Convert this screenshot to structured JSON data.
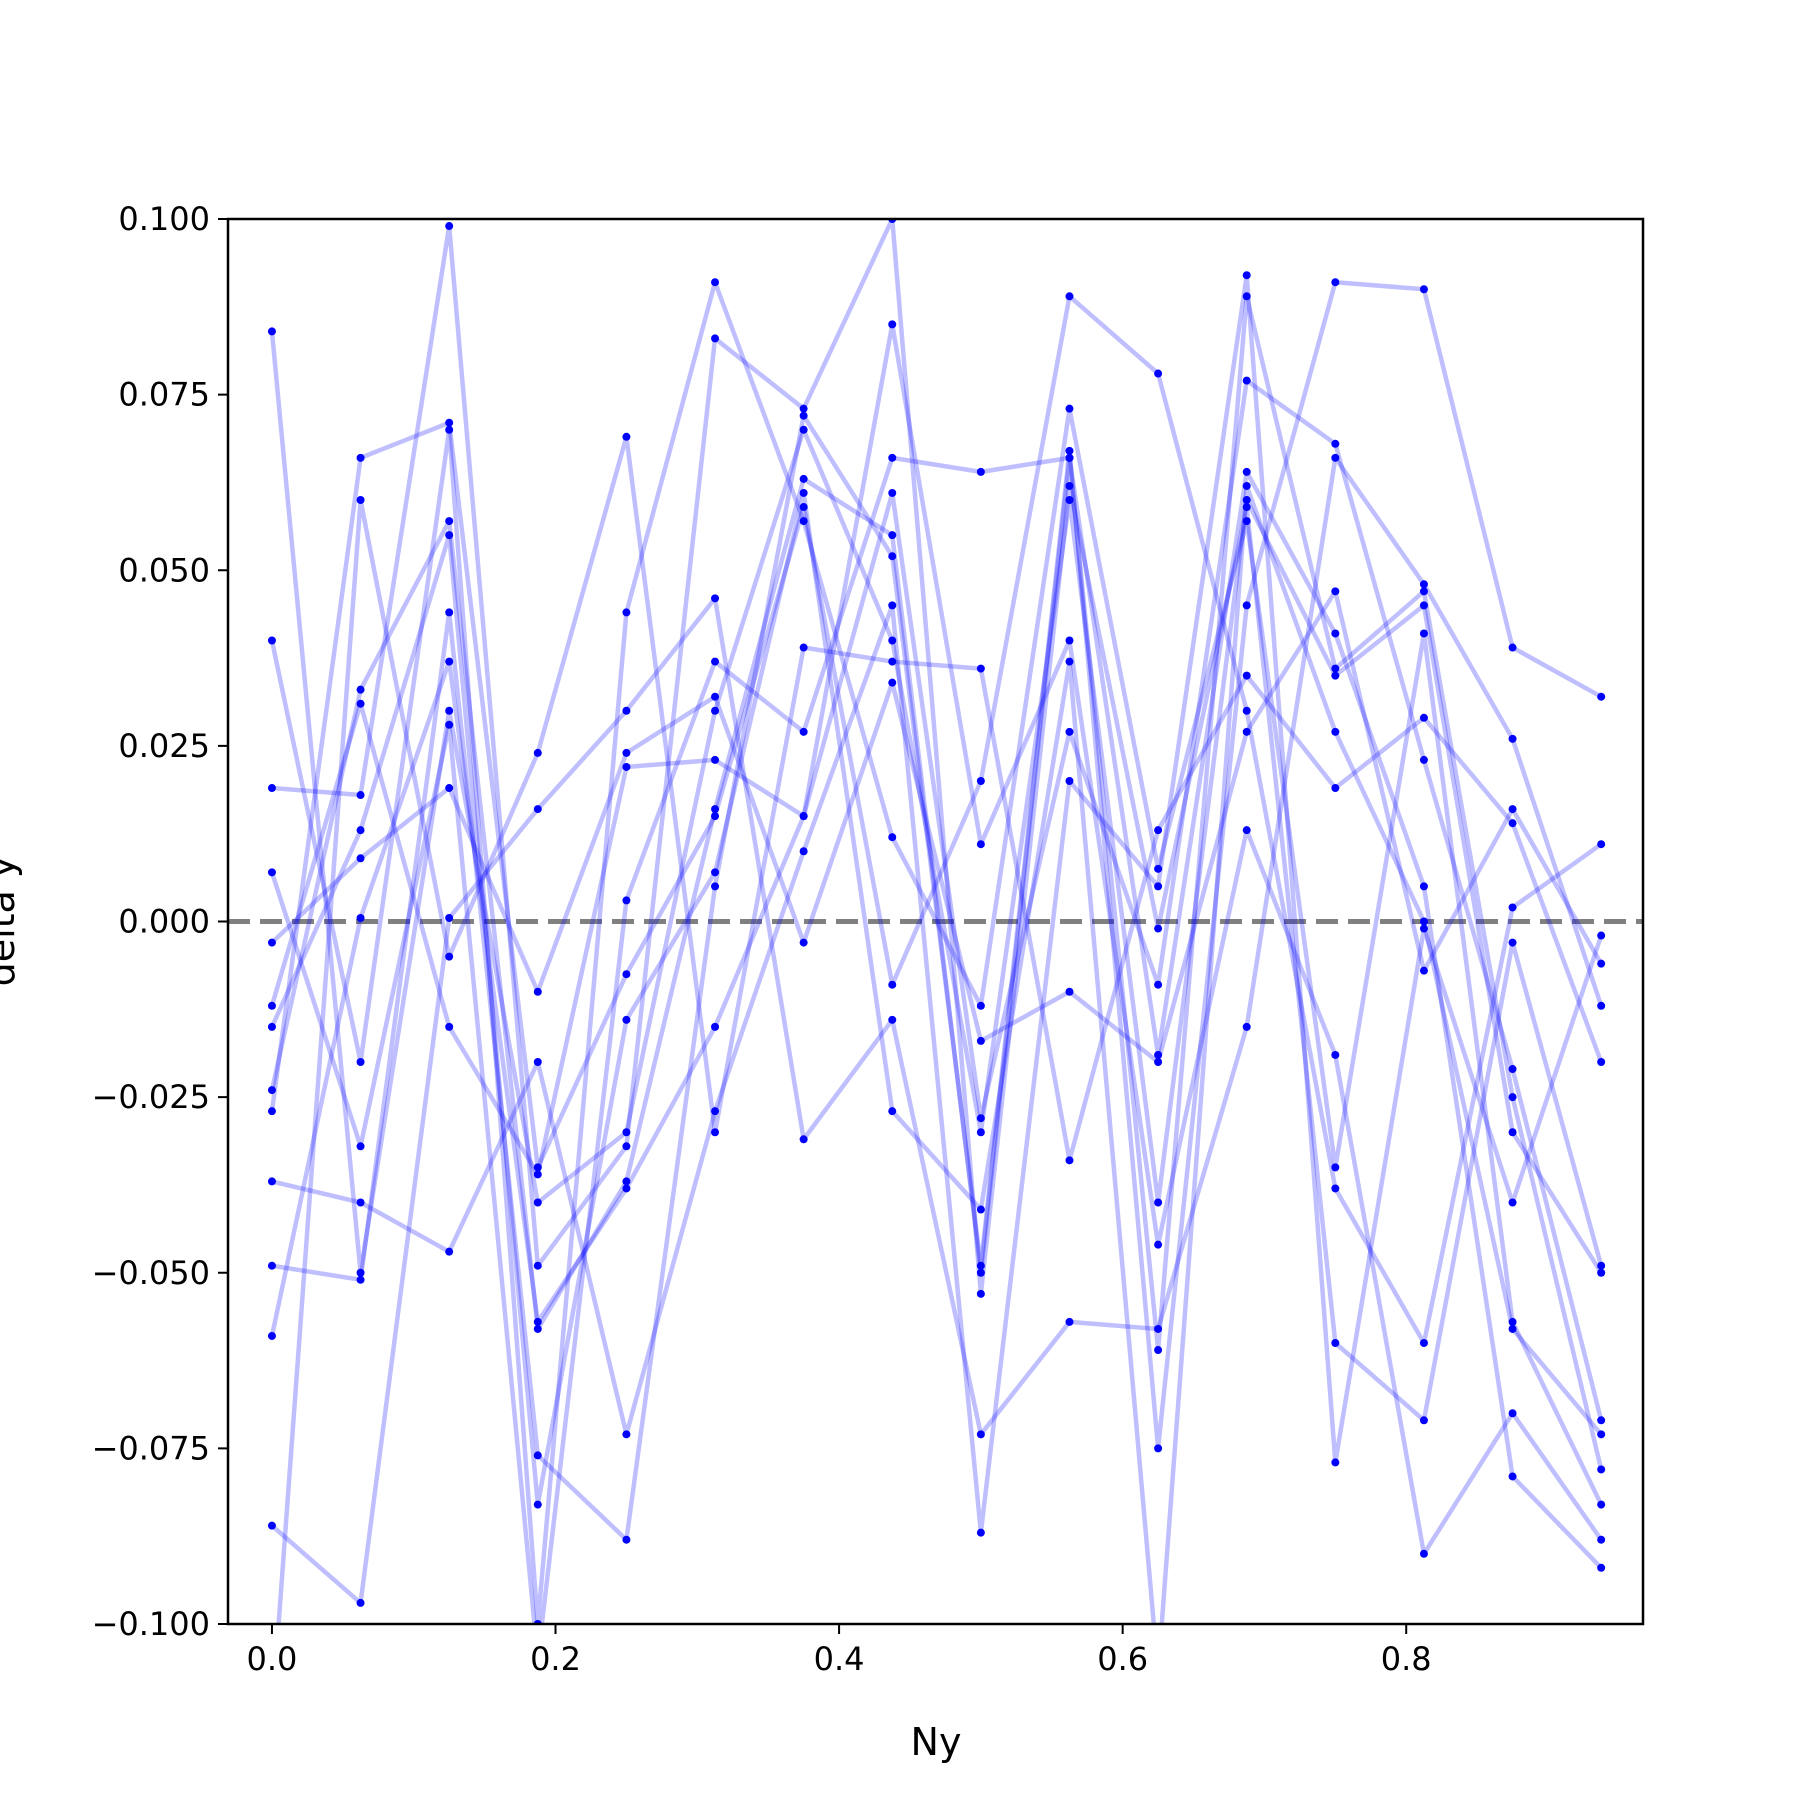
{
  "chart_data": {
    "type": "line",
    "xlabel": "Ny",
    "ylabel": "delta y",
    "color": "#0000ff",
    "line_alpha": 0.25,
    "xlim": [
      -0.031,
      0.967
    ],
    "ylim": [
      -0.1,
      0.1
    ],
    "xticks": [
      {
        "value": 0,
        "label": "0.0"
      },
      0.2,
      0.4,
      0.6,
      0.8
    ],
    "yticks": [
      {
        "value": -0.1,
        "label": "−0.100"
      },
      {
        "value": -0.075,
        "label": "−0.075"
      },
      {
        "value": -0.05,
        "label": "−0.050"
      },
      {
        "value": -0.025,
        "label": "−0.025"
      },
      {
        "value": 0,
        "label": "0.000"
      },
      {
        "value": 0.025,
        "label": "0.025"
      },
      {
        "value": 0.05,
        "label": "0.050"
      },
      {
        "value": 0.075,
        "label": "0.075"
      },
      {
        "value": 0.1,
        "label": "0.100"
      }
    ],
    "hline": {
      "y": 0,
      "color": "#808080",
      "dashed": true
    },
    "x": [
      0,
      0.0625,
      0.125,
      0.1875,
      0.25,
      0.3125,
      0.375,
      0.4375,
      0.5,
      0.5625,
      0.625,
      0.6875,
      0.75,
      0.8125,
      0.875,
      0.9375
    ],
    "series": [
      {
        "values": [
          0.084,
          -0.05,
          0.03,
          -0.04,
          -0.03,
          0.03,
          0.07,
          0.04,
          -0.03,
          0.06,
          -0.04,
          0.06,
          0.035,
          0.045,
          -0.03,
          -0.05
        ]
      },
      {
        "values": [
          -0.024,
          0.033,
          0.057,
          -0.058,
          -0.037,
          0.016,
          0.063,
          0.055,
          -0.05,
          0.066,
          -0.061,
          0.089,
          0.036,
          0.047,
          -0.025,
          -0.078
        ]
      },
      {
        "values": [
          0.04,
          -0.02,
          0.07,
          -0.1,
          0.044,
          0.091,
          0.057,
          0.012,
          -0.012,
          0.073,
          0.0075,
          0.057,
          -0.035,
          0.041,
          -0.057,
          -0.083
        ]
      },
      {
        "values": [
          -0.012,
          0.031,
          -0.015,
          -0.036,
          0.022,
          0.023,
          0.015,
          0.061,
          -0.028,
          0.027,
          -0.009,
          0.077,
          0.068,
          0.023,
          -0.021,
          -0.071
        ]
      },
      {
        "values": [
          0.019,
          0.018,
          0.099,
          -0.049,
          -0.032,
          0.083,
          0.073,
          0.1,
          -0.053,
          0.062,
          -0.001,
          0.059,
          -0.06,
          -0.071,
          -0.003,
          -0.049
        ]
      },
      {
        "values": [
          -0.113,
          0.06,
          -0.005,
          0.024,
          0.069,
          -0.03,
          0.039,
          0.037,
          0.036,
          -0.034,
          0.013,
          0.035,
          0.019,
          0.029,
          0.014,
          -0.02
        ]
      },
      {
        "values": [
          -0.049,
          -0.051,
          0.044,
          -0.076,
          -0.088,
          0.005,
          0.072,
          0.052,
          -0.049,
          0.067,
          -0.075,
          0.045,
          0.091,
          0.09,
          0.039,
          0.032
        ]
      },
      {
        "values": [
          0.007,
          -0.032,
          0.028,
          -0.105,
          0.003,
          0.037,
          0.027,
          0.066,
          0.064,
          0.066,
          -0.019,
          0.064,
          0.041,
          0.005,
          -0.079,
          -0.092
        ]
      },
      {
        "values": [
          -0.059,
          0.0005,
          0.037,
          -0.057,
          -0.038,
          -0.015,
          0.015,
          0.085,
          0.011,
          0.04,
          -0.046,
          0.013,
          -0.019,
          -0.09,
          -0.07,
          -0.088
        ]
      },
      {
        "values": [
          -0.027,
          0.066,
          0.071,
          -0.035,
          -0.0075,
          0.015,
          0.059,
          -0.009,
          0.02,
          0.089,
          0.078,
          0.03,
          -0.038,
          -0.06,
          0.002,
          0.011
        ]
      },
      {
        "values": [
          -0.086,
          -0.097,
          0.0005,
          0.016,
          0.03,
          0.046,
          -0.031,
          -0.014,
          -0.073,
          -0.057,
          -0.058,
          -0.015,
          0.066,
          0.048,
          0.026,
          -0.012
        ]
      },
      {
        "values": [
          -0.015,
          0.013,
          0.055,
          -0.083,
          -0.014,
          0.007,
          0.061,
          -0.027,
          -0.041,
          0.037,
          -0.107,
          0.062,
          0.027,
          0.0,
          -0.058,
          -0.073
        ]
      },
      {
        "values": [
          -0.037,
          -0.04,
          -0.047,
          -0.02,
          -0.073,
          -0.027,
          0.01,
          0.045,
          -0.087,
          0.02,
          0.005,
          0.092,
          -0.077,
          -0.001,
          -0.04,
          -0.002
        ]
      },
      {
        "values": [
          -0.003,
          0.009,
          0.019,
          -0.01,
          0.024,
          0.032,
          -0.003,
          0.034,
          -0.017,
          -0.01,
          -0.02,
          0.027,
          0.047,
          -0.007,
          0.016,
          -0.006
        ]
      }
    ]
  }
}
